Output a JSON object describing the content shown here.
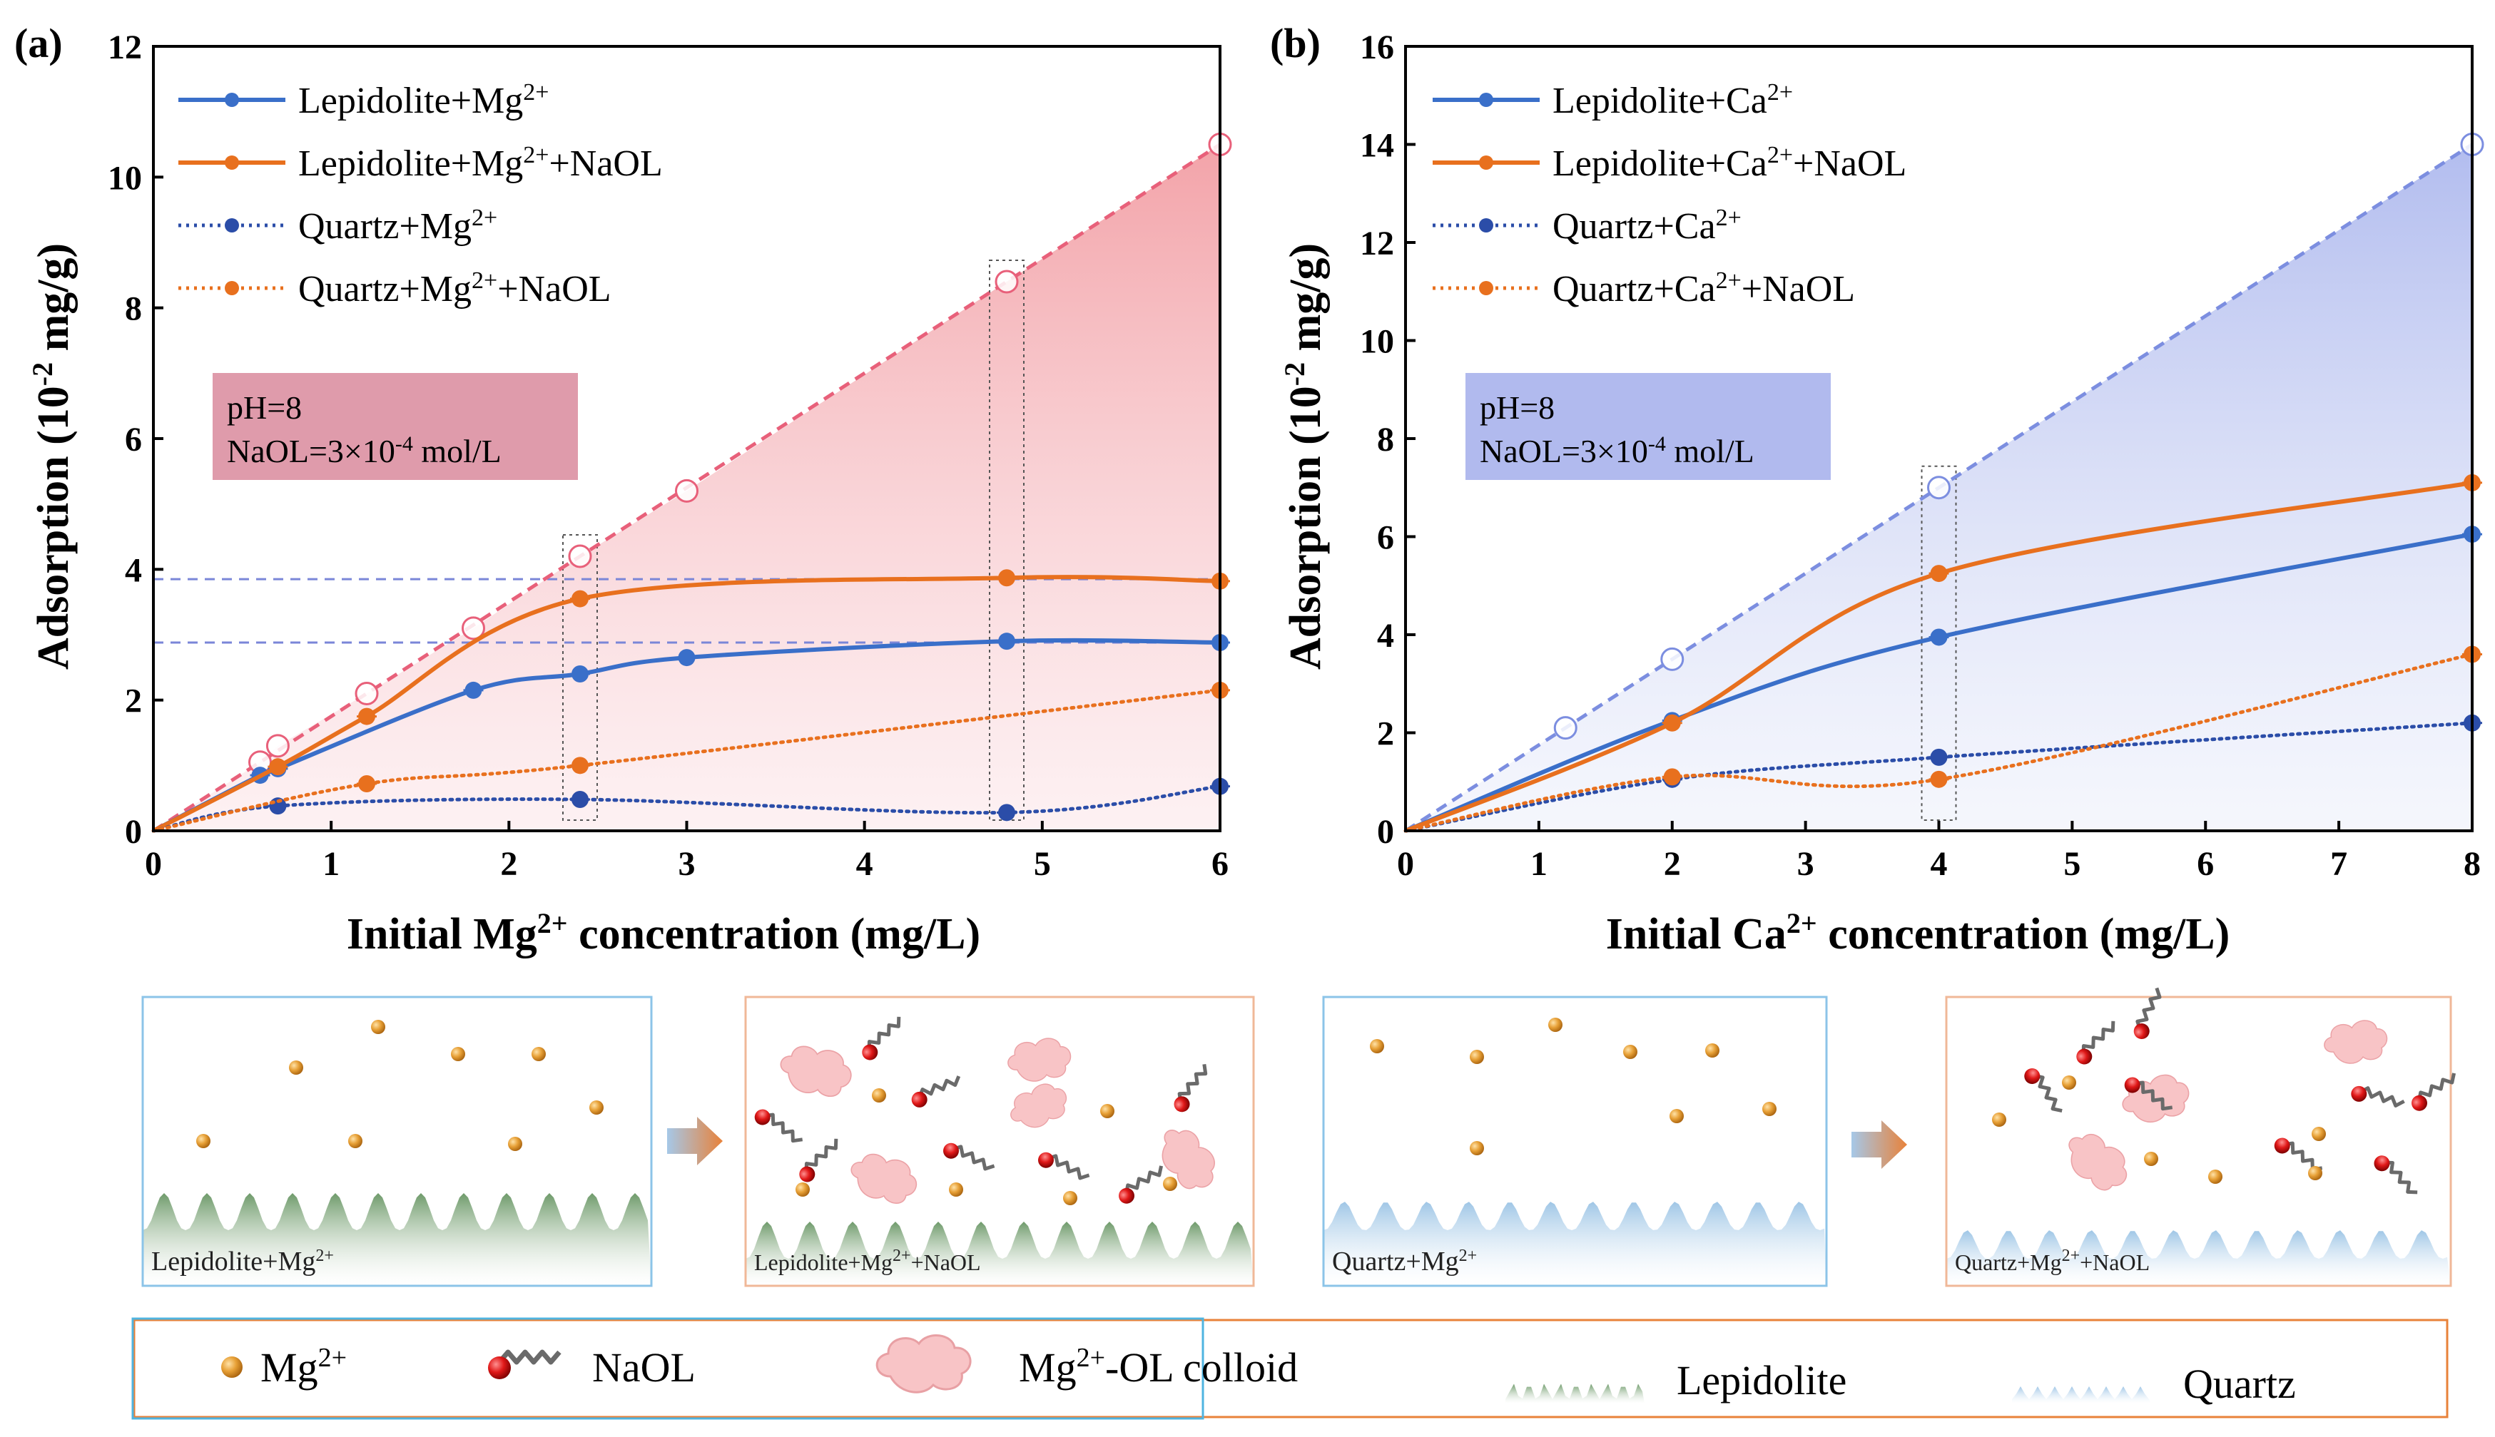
{
  "chart_data": [
    {
      "panel": "(a)",
      "type": "line",
      "xlabel_pre": "Initial Mg",
      "xlabel_sup": "2+",
      "xlabel_post": " concentration (mg/L)",
      "ylabel_pre": "Adsorption (10",
      "ylabel_sup": "-2",
      "ylabel_post": " mg/g)",
      "xlim": [
        0,
        6
      ],
      "ylim": [
        0,
        12
      ],
      "xticks": [
        "0",
        "1",
        "2",
        "3",
        "4",
        "5",
        "6"
      ],
      "yticks": [
        "0",
        "2",
        "4",
        "6",
        "8",
        "10",
        "12"
      ],
      "colors": {
        "blue": "#3a6fc9",
        "orange": "#e8701e",
        "dark_blue": "#2b4da8",
        "ideal": "#e8607a",
        "shade": "#f6a6a8",
        "guide": "#7a86d8"
      },
      "ideal_line": {
        "x": [
          0,
          0.6,
          0.7,
          1.2,
          1.8,
          2.4,
          3.0,
          4.8,
          6.0
        ],
        "y": [
          0,
          1.05,
          1.3,
          2.1,
          3.1,
          4.2,
          5.2,
          8.4,
          10.5
        ]
      },
      "horizontal_guides": [
        3.85,
        2.88
      ],
      "highlight_x": [
        2.4,
        4.8
      ],
      "series": [
        {
          "name_pre": "Lepidolite+Mg",
          "name_sup": "2+",
          "name_post": "",
          "style": "solid",
          "color": "#3a6fc9",
          "x": [
            0,
            0.6,
            0.7,
            1.8,
            2.4,
            3.0,
            4.8,
            6.0
          ],
          "y": [
            0,
            0.85,
            0.95,
            2.15,
            2.4,
            2.65,
            2.9,
            2.88
          ]
        },
        {
          "name_pre": "Lepidolite+Mg",
          "name_sup": "2+",
          "name_post": "+NaOL",
          "style": "solid",
          "color": "#e8701e",
          "x": [
            0,
            0.7,
            1.2,
            2.4,
            4.8,
            6.0
          ],
          "y": [
            0,
            0.98,
            1.75,
            3.55,
            3.87,
            3.82
          ]
        },
        {
          "name_pre": "Quartz+Mg",
          "name_sup": "2+",
          "name_post": "",
          "style": "dotted",
          "color": "#2b4da8",
          "x": [
            0,
            0.7,
            2.4,
            4.8,
            6.0
          ],
          "y": [
            0,
            0.38,
            0.48,
            0.28,
            0.68
          ]
        },
        {
          "name_pre": "Quartz+Mg",
          "name_sup": "2+",
          "name_post": "+NaOL",
          "style": "dotted",
          "color": "#e8701e",
          "x": [
            0,
            1.2,
            2.4,
            6.0
          ],
          "y": [
            0,
            0.72,
            1.0,
            2.15
          ]
        }
      ],
      "box": {
        "line1": "pH=8",
        "line2_pre": "NaOL=3×10",
        "line2_sup": "-4",
        "line2_post": " mol/L",
        "color": "#d98a9c"
      }
    },
    {
      "panel": "(b)",
      "type": "line",
      "xlabel_pre": "Initial Ca",
      "xlabel_sup": "2+",
      "xlabel_post": " concentration (mg/L)",
      "ylabel_pre": "Adsorption (10",
      "ylabel_sup": "-2",
      "ylabel_post": " mg/g)",
      "xlim": [
        0,
        8
      ],
      "ylim": [
        0,
        16
      ],
      "xticks": [
        "0",
        "1",
        "2",
        "3",
        "4",
        "5",
        "6",
        "7",
        "8"
      ],
      "yticks": [
        "0",
        "2",
        "4",
        "6",
        "8",
        "10",
        "12",
        "14",
        "16"
      ],
      "colors": {
        "blue": "#3a6fc9",
        "orange": "#e8701e",
        "dark_blue": "#2b4da8",
        "ideal": "#7c8ee0",
        "shade": "#b4bff0"
      },
      "ideal_line": {
        "x": [
          0,
          1.2,
          2.0,
          4.0,
          8.0
        ],
        "y": [
          0,
          2.1,
          3.5,
          7.0,
          14.0
        ]
      },
      "highlight_x": [
        4.0
      ],
      "series": [
        {
          "name_pre": "Lepidolite+Ca",
          "name_sup": "2+",
          "name_post": "",
          "style": "solid",
          "color": "#3a6fc9",
          "x": [
            0,
            2.0,
            4.0,
            8.0
          ],
          "y": [
            0,
            2.25,
            3.95,
            6.05
          ]
        },
        {
          "name_pre": "Lepidolite+Ca",
          "name_sup": "2+",
          "name_post": "+NaOL",
          "style": "solid",
          "color": "#e8701e",
          "x": [
            0,
            2.0,
            4.0,
            8.0
          ],
          "y": [
            0,
            2.2,
            5.25,
            7.1
          ]
        },
        {
          "name_pre": "Quartz+Ca",
          "name_sup": "2+",
          "name_post": "",
          "style": "dotted",
          "color": "#2b4da8",
          "x": [
            0,
            2.0,
            4.0,
            8.0
          ],
          "y": [
            0,
            1.05,
            1.5,
            2.2
          ]
        },
        {
          "name_pre": "Quartz+Ca",
          "name_sup": "2+",
          "name_post": "+NaOL",
          "style": "dotted",
          "color": "#e8701e",
          "x": [
            0,
            2.0,
            4.0,
            8.0
          ],
          "y": [
            0,
            1.1,
            1.05,
            3.6
          ]
        }
      ],
      "box": {
        "line1": "pH=8",
        "line2_pre": "NaOL=3×10",
        "line2_sup": "-4",
        "line2_post": " mol/L",
        "color": "#a8b3ec"
      }
    }
  ],
  "schematic": {
    "arrow_color": "#e8823a",
    "panels": [
      {
        "label_pre": "Lepidolite+Mg",
        "label_sup": "2+",
        "label_post": "",
        "surface": "lepidolite",
        "border": "#8cc4e8"
      },
      {
        "label_pre": "Lepidolite+Mg",
        "label_sup": "2+",
        "label_post": "+NaOL",
        "surface": "lepidolite",
        "border": "#f0b898"
      },
      {
        "label_pre": "Quartz+Mg",
        "label_sup": "2+",
        "label_post": "",
        "surface": "quartz",
        "border": "#8cc4e8"
      },
      {
        "label_pre": "Quartz+Mg",
        "label_sup": "2+",
        "label_post": "+NaOL",
        "surface": "quartz",
        "border": "#f0b898"
      }
    ],
    "legend": {
      "mg_pre": "Mg",
      "mg_sup": "2+",
      "naol": "NaOL",
      "colloid_pre": "Mg",
      "colloid_sup": "2+",
      "colloid_post": "-OL colloid",
      "lepidolite": "Lepidolite",
      "quartz": "Quartz"
    }
  }
}
